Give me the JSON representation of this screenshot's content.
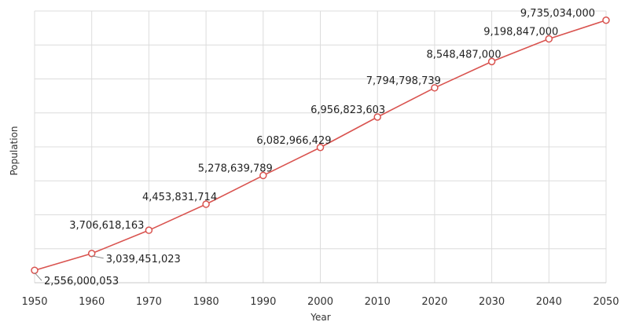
{
  "chart_data": {
    "type": "line",
    "xlabel": "Year",
    "ylabel": "Population",
    "x": [
      1950,
      1960,
      1970,
      1980,
      1990,
      2000,
      2010,
      2020,
      2030,
      2040,
      2050
    ],
    "series": [
      {
        "values": [
          2556000053,
          3039451023,
          3706618163,
          4453831714,
          5278639789,
          6082966429,
          6956823603,
          7794798739,
          8548487000,
          9198847000,
          9735034000
        ],
        "data_labels": [
          "2,556,000,053",
          "3,039,451,023",
          "3,706,618,163",
          "4,453,831,714",
          "5,278,639,789",
          "6,082,966,429",
          "6,956,823,603",
          "7,794,798,739",
          "8,548,487,000",
          "9,198,847,000",
          "9,735,034,000"
        ],
        "color": "#d9534f"
      }
    ],
    "x_tick_labels": [
      "1950",
      "1960",
      "1970",
      "1980",
      "1990",
      "2000",
      "2010",
      "2020",
      "2030",
      "2040",
      "2050"
    ],
    "xlim": [
      1950,
      2050
    ],
    "ylim": [
      2200000000,
      10000000000
    ],
    "y_tick_labels_shown": false,
    "grid": true
  }
}
